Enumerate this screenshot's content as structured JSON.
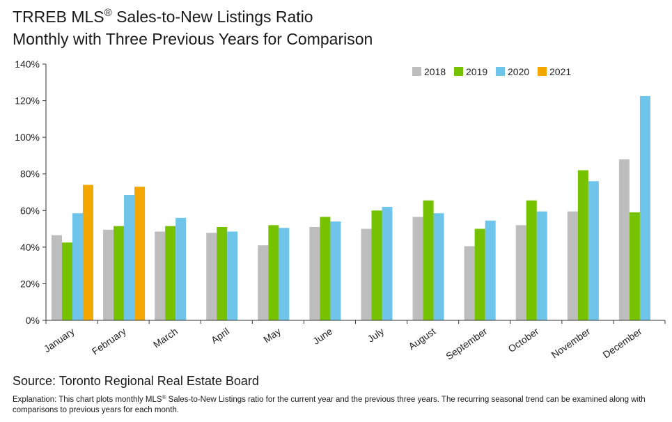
{
  "header": {
    "title_main": "TRREB MLS",
    "title_reg": "®",
    "title_rest": " Sales-to-New Listings Ratio",
    "subtitle": "Monthly with Three Previous Years for Comparison"
  },
  "footer": {
    "source": "Source: Toronto Regional Real Estate Board",
    "explanation_a": "Explanation: This chart plots monthly MLS",
    "explanation_reg": "®",
    "explanation_b": " Sales-to-New Listings ratio for the current year and the previous three years. The recurring seasonal trend can be examined along with comparisons to previous years for each month."
  },
  "chart_data": {
    "type": "bar",
    "categories": [
      "January",
      "February",
      "March",
      "April",
      "May",
      "June",
      "July",
      "August",
      "September",
      "October",
      "November",
      "December"
    ],
    "series": [
      {
        "name": "2018",
        "color": "#bdbdbd",
        "values": [
          46.5,
          49.5,
          48.5,
          47.8,
          41,
          51,
          50,
          56.5,
          40.5,
          52,
          59.5,
          88
        ]
      },
      {
        "name": "2019",
        "color": "#77c200",
        "values": [
          42.5,
          51.5,
          51.5,
          51,
          52,
          56.5,
          60,
          65.5,
          50,
          65.5,
          82,
          59
        ]
      },
      {
        "name": "2020",
        "color": "#6fc4ea",
        "values": [
          58.5,
          68.5,
          56,
          48.5,
          50.5,
          54,
          62,
          58.5,
          54.5,
          59.5,
          76,
          122.5
        ]
      },
      {
        "name": "2021",
        "color": "#f4a700",
        "values": [
          74,
          73,
          null,
          null,
          null,
          null,
          null,
          null,
          null,
          null,
          null,
          null
        ]
      }
    ],
    "y_ticks": [
      "0%",
      "20%",
      "40%",
      "60%",
      "80%",
      "100%",
      "120%",
      "140%"
    ],
    "ylim": [
      0,
      140
    ],
    "legend_position": "top-right",
    "grid": false
  }
}
